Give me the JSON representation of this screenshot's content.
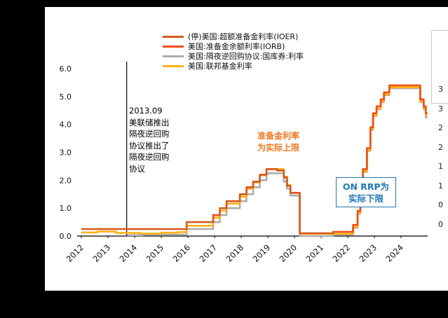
{
  "chart_data": {
    "type": "line",
    "title": "",
    "ylim": [
      0,
      6
    ],
    "x_range": [
      2011.84,
      2025.0
    ],
    "grid": false,
    "legend_position": "top-center",
    "y_ticks": [
      {
        "value": 0,
        "label": "0.0"
      },
      {
        "value": 1,
        "label": "1.0"
      },
      {
        "value": 2,
        "label": "2.0"
      },
      {
        "value": 3,
        "label": "3.0"
      },
      {
        "value": 4,
        "label": "4.0"
      },
      {
        "value": 5,
        "label": "5.0"
      },
      {
        "value": 6,
        "label": "6.0"
      }
    ],
    "x_ticks": [
      {
        "value": 2012,
        "label": "2012"
      },
      {
        "value": 2013,
        "label": "2013"
      },
      {
        "value": 2014,
        "label": "2014"
      },
      {
        "value": 2015,
        "label": "2015"
      },
      {
        "value": 2016,
        "label": "2016"
      },
      {
        "value": 2017,
        "label": "2017"
      },
      {
        "value": 2018,
        "label": "2018"
      },
      {
        "value": 2019,
        "label": "2019"
      },
      {
        "value": 2020,
        "label": "2020"
      },
      {
        "value": 2021,
        "label": "2021"
      },
      {
        "value": 2022,
        "label": "2022"
      },
      {
        "value": 2023,
        "label": "2023"
      },
      {
        "value": 2024,
        "label": "2024"
      }
    ],
    "series": [
      {
        "name": "(停)美国:超额准备金利率(IOER)",
        "color": "#D8571E",
        "points": [
          [
            2012.0,
            0.25
          ],
          [
            2015.95,
            0.5
          ],
          [
            2016.95,
            0.75
          ],
          [
            2017.2,
            1.0
          ],
          [
            2017.45,
            1.25
          ],
          [
            2017.95,
            1.5
          ],
          [
            2018.2,
            1.75
          ],
          [
            2018.45,
            1.95
          ],
          [
            2018.7,
            2.2
          ],
          [
            2018.95,
            2.4
          ],
          [
            2019.35,
            2.35
          ],
          [
            2019.6,
            2.1
          ],
          [
            2019.72,
            1.8
          ],
          [
            2019.85,
            1.55
          ],
          [
            2020.2,
            0.1
          ],
          [
            2021.45,
            0.15
          ],
          [
            2021.56,
            0.15
          ]
        ]
      },
      {
        "name": "美国:准备金余额利率(IORB)",
        "color": "#F04E0F",
        "points": [
          [
            2021.56,
            0.15
          ],
          [
            2022.2,
            0.4
          ],
          [
            2022.37,
            0.9
          ],
          [
            2022.47,
            1.65
          ],
          [
            2022.57,
            2.4
          ],
          [
            2022.72,
            3.15
          ],
          [
            2022.85,
            3.9
          ],
          [
            2022.95,
            4.4
          ],
          [
            2023.08,
            4.65
          ],
          [
            2023.24,
            4.9
          ],
          [
            2023.36,
            5.15
          ],
          [
            2023.56,
            5.4
          ],
          [
            2024.72,
            4.9
          ],
          [
            2024.85,
            4.65
          ],
          [
            2024.93,
            4.4
          ],
          [
            2024.99,
            4.4
          ]
        ]
      },
      {
        "name": "美国:隔夜逆回购协议:国库券:利率",
        "color": "#ADADAD",
        "points": [
          [
            2013.72,
            0.03
          ],
          [
            2014.3,
            0.05
          ],
          [
            2015.95,
            0.25
          ],
          [
            2016.95,
            0.5
          ],
          [
            2017.2,
            0.75
          ],
          [
            2017.45,
            1.0
          ],
          [
            2017.95,
            1.25
          ],
          [
            2018.2,
            1.5
          ],
          [
            2018.45,
            1.75
          ],
          [
            2018.7,
            2.0
          ],
          [
            2018.95,
            2.25
          ],
          [
            2019.6,
            1.95
          ],
          [
            2019.72,
            1.7
          ],
          [
            2019.85,
            1.45
          ],
          [
            2020.2,
            0.0
          ],
          [
            2021.45,
            0.05
          ],
          [
            2022.2,
            0.3
          ],
          [
            2022.37,
            0.8
          ],
          [
            2022.47,
            1.55
          ],
          [
            2022.57,
            2.3
          ],
          [
            2022.72,
            3.05
          ],
          [
            2022.85,
            3.8
          ],
          [
            2022.95,
            4.3
          ],
          [
            2023.08,
            4.55
          ],
          [
            2023.24,
            4.8
          ],
          [
            2023.36,
            5.05
          ],
          [
            2023.56,
            5.3
          ],
          [
            2024.72,
            4.8
          ],
          [
            2024.85,
            4.55
          ],
          [
            2024.93,
            4.25
          ],
          [
            2024.99,
            4.25
          ]
        ]
      },
      {
        "name": "美国:联邦基金利率",
        "color": "#FCB116",
        "points": [
          [
            2012.0,
            0.13
          ],
          [
            2012.6,
            0.16
          ],
          [
            2013.3,
            0.11
          ],
          [
            2014.2,
            0.09
          ],
          [
            2015.0,
            0.12
          ],
          [
            2015.6,
            0.14
          ],
          [
            2015.95,
            0.37
          ],
          [
            2016.95,
            0.66
          ],
          [
            2017.2,
            0.91
          ],
          [
            2017.45,
            1.16
          ],
          [
            2017.95,
            1.41
          ],
          [
            2018.2,
            1.7
          ],
          [
            2018.45,
            1.92
          ],
          [
            2018.7,
            2.18
          ],
          [
            2018.95,
            2.4
          ],
          [
            2019.6,
            2.13
          ],
          [
            2019.72,
            1.83
          ],
          [
            2019.85,
            1.55
          ],
          [
            2020.2,
            0.08
          ],
          [
            2022.2,
            0.33
          ],
          [
            2022.37,
            0.83
          ],
          [
            2022.47,
            1.58
          ],
          [
            2022.57,
            2.33
          ],
          [
            2022.72,
            3.08
          ],
          [
            2022.85,
            3.83
          ],
          [
            2022.95,
            4.33
          ],
          [
            2023.08,
            4.57
          ],
          [
            2023.24,
            4.83
          ],
          [
            2023.36,
            5.08
          ],
          [
            2023.56,
            5.33
          ],
          [
            2024.72,
            4.83
          ],
          [
            2024.85,
            4.58
          ],
          [
            2024.93,
            4.33
          ],
          [
            2024.99,
            4.33
          ]
        ]
      }
    ],
    "annotations": {
      "vline_x": 2013.7,
      "vline_color": "#000000",
      "vline_note_lines": [
        "2013.09",
        "美联储推出",
        "隔夜逆回购",
        "协议推出了",
        "隔夜逆回购",
        "协议"
      ],
      "upper_note_lines": [
        "准备金利率",
        "为实际上限"
      ],
      "upper_note_color": "#F07820",
      "box_note_lines": [
        "ON RRP为",
        "实际下限"
      ],
      "box_note_color": "#2278B5"
    }
  },
  "right_strip": {
    "tick_labels": [
      "3",
      "3",
      "2",
      "2",
      "1",
      "1",
      "0",
      "0"
    ]
  }
}
